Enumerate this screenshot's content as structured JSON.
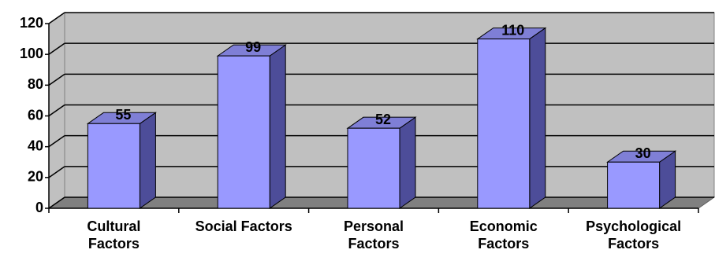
{
  "chart_data": {
    "type": "bar",
    "categories": [
      "Cultural\nFactors",
      "Social Factors",
      "Personal\nFactors",
      "Economic\nFactors",
      "Psychological\nFactors"
    ],
    "values": [
      55,
      99,
      52,
      110,
      30
    ],
    "color": "#9999ff",
    "ylim": [
      0,
      120
    ],
    "yticks": [
      0,
      20,
      40,
      60,
      80,
      100,
      120
    ],
    "grid": true
  }
}
